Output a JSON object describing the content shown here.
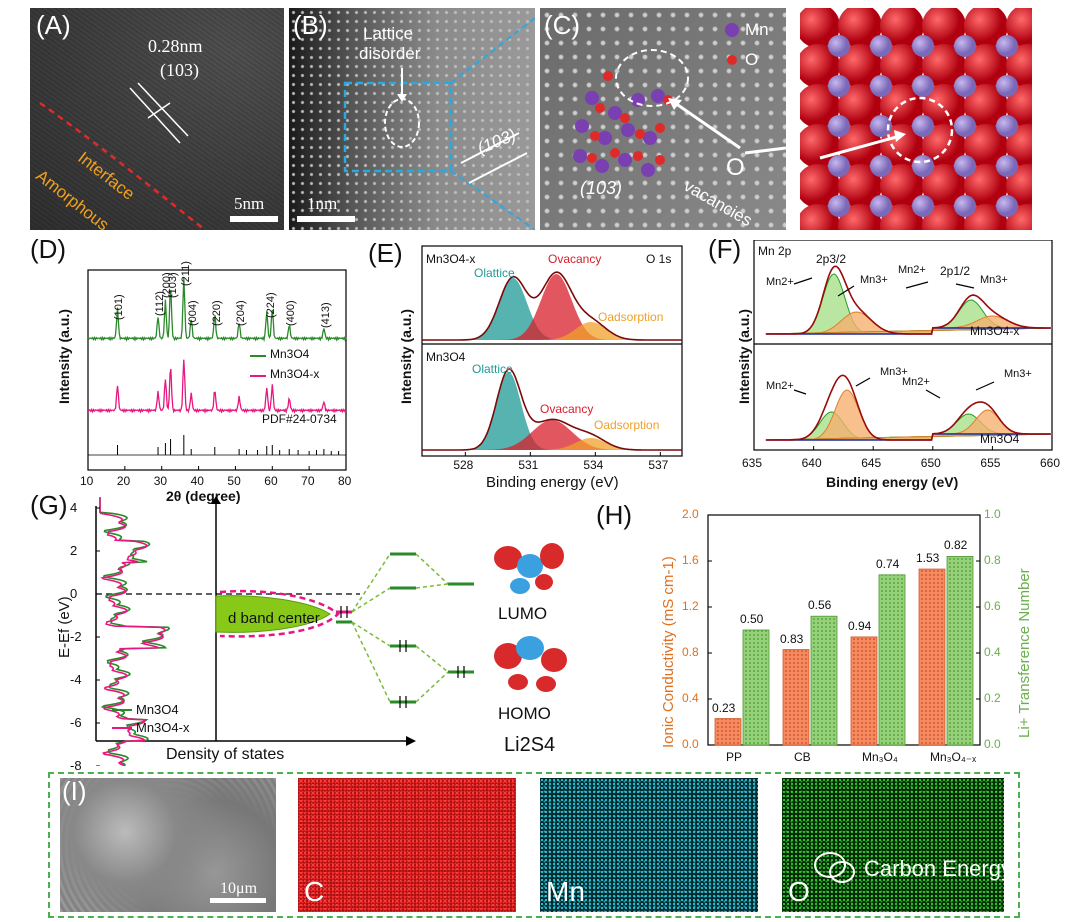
{
  "panels": {
    "A": {
      "label": "(A)",
      "spacing": "0.28nm",
      "plane": "(103)",
      "interface": "Interface",
      "amorphous": "Amorphous",
      "scale": "5nm"
    },
    "B": {
      "label": "(B)",
      "disorder_line1": "Lattice",
      "disorder_line2": "disorder",
      "plane": "(103)",
      "scale": "1nm"
    },
    "C": {
      "label": "(C)",
      "legend_mn": "Mn",
      "legend_o": "O",
      "plane": "(103)",
      "vac_o": "O",
      "vac_text": "vacancies"
    },
    "D": {
      "label": "(D)",
      "ylabel": "Intensity (a.u.)",
      "xlabel": "2θ (degree)",
      "peaks": [
        "(101)",
        "(112)",
        "(200)",
        "(103)",
        "(211)",
        "(004)",
        "(220)",
        "(204)",
        "(224)",
        "(400)",
        "(413)"
      ],
      "legend": [
        "Mn3O4",
        "Mn3O4-x"
      ],
      "pdf": "PDF#24-0734",
      "ticks": [
        "10",
        "20",
        "30",
        "40",
        "50",
        "60",
        "70",
        "80"
      ]
    },
    "E": {
      "label": "(E)",
      "ylabel": "Intensity (a.u.)",
      "xlabel": "Binding energy (eV)",
      "top_sample": "Mn3O4-x",
      "bottom_sample": "Mn3O4",
      "region": "O 1s",
      "comp": [
        "Olattice",
        "Ovacancy",
        "Oadsorption"
      ],
      "ticks": [
        "528",
        "531",
        "534",
        "537"
      ]
    },
    "F": {
      "label": "(F)",
      "ylabel": "Intensity (a.u.)",
      "xlabel": "Binding energy (eV)",
      "region": "Mn 2p",
      "top_sample": "Mn3O4-x",
      "bottom_sample": "Mn3O4",
      "p32": "2p3/2",
      "p12": "2p1/2",
      "mn2": "Mn2+",
      "mn3": "Mn3+",
      "ticks": [
        "635",
        "640",
        "645",
        "650",
        "655",
        "660"
      ]
    },
    "G": {
      "label": "(G)",
      "ylabel": "E-Ef (eV)",
      "xlabel": "Density of states",
      "legend": [
        "Mn3O4",
        "Mn3O4-x"
      ],
      "band": "d band center",
      "lumo": "LUMO",
      "homo": "HOMO",
      "molecule": "Li2S4",
      "ticks": [
        "4",
        "2",
        "0",
        "-2",
        "-4",
        "-6",
        "-8"
      ]
    },
    "H": {
      "label": "(H)",
      "ylabel_left": "Ionic Conductivity (mS cm-1)",
      "ylabel_right": "Li+ Transference Number",
      "left_ticks": [
        "0.0",
        "0.4",
        "0.8",
        "1.2",
        "1.6",
        "2.0"
      ],
      "right_ticks": [
        "0.0",
        "0.2",
        "0.4",
        "0.6",
        "0.8",
        "1.0"
      ]
    },
    "I": {
      "label": "(I)",
      "scale": "10μm",
      "maps": [
        "C",
        "Mn",
        "O"
      ],
      "watermark": "Carbon Energy"
    }
  },
  "chart_data": {
    "type": "bar",
    "categories": [
      "PP",
      "CB",
      "Mn3O4",
      "Mn3O4-x"
    ],
    "series": [
      {
        "name": "Ionic Conductivity",
        "values": [
          0.23,
          0.83,
          0.94,
          1.53
        ],
        "axis": "left",
        "color": "#f47b50"
      },
      {
        "name": "Li+ Transference Number",
        "values": [
          0.5,
          0.56,
          0.74,
          0.82
        ],
        "axis": "right",
        "color": "#86c76a"
      }
    ],
    "ylabel": "Ionic Conductivity (mS cm-1)",
    "y2label": "Li+ Transference Number",
    "ylim": [
      0,
      2.0
    ],
    "y2lim": [
      0,
      1.0
    ],
    "data_labels": [
      "0.23",
      "0.50",
      "0.83",
      "0.56",
      "0.94",
      "0.74",
      "1.53",
      "0.82"
    ]
  },
  "colors": {
    "green": "#2a8a2a",
    "pink": "#e8177f",
    "red": "#d81e2a",
    "teal": "#1f9a96",
    "orange": "#f0a02a",
    "axis_orange": "#e07020",
    "axis_green": "#6ab04c"
  }
}
